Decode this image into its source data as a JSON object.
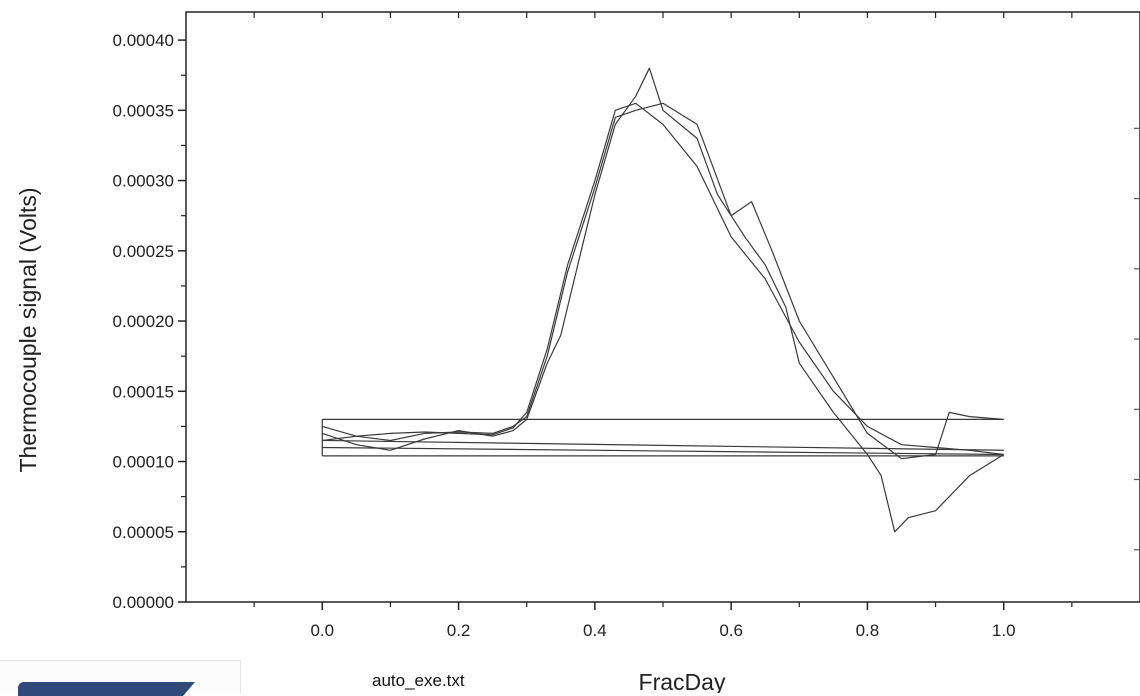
{
  "chart_data": {
    "type": "line",
    "title": "",
    "xlabel": "FracDay",
    "ylabel": "Thermocouple signal (Volts)",
    "xlim": [
      -0.2,
      1.2
    ],
    "ylim": [
      0.0,
      0.00042
    ],
    "x_ticks": [
      "0.0",
      "0.2",
      "0.4",
      "0.6",
      "0.8",
      "1.0"
    ],
    "y_ticks": [
      "0.00000",
      "0.00005",
      "0.00010",
      "0.00015",
      "0.00020",
      "0.00025",
      "0.00030",
      "0.00035",
      "0.00040"
    ],
    "grid": false,
    "line_color": "#3a3a3a",
    "series": [
      {
        "points": [
          [
            0.0,
            0.000115
          ],
          [
            0.05,
            0.000118
          ],
          [
            0.1,
            0.00012
          ],
          [
            0.15,
            0.000121
          ],
          [
            0.2,
            0.00012
          ],
          [
            0.25,
            0.000119
          ],
          [
            0.28,
            0.000124
          ],
          [
            0.3,
            0.000135
          ],
          [
            0.33,
            0.00018
          ],
          [
            0.36,
            0.00024
          ],
          [
            0.4,
            0.0003
          ],
          [
            0.43,
            0.00035
          ],
          [
            0.46,
            0.000355
          ],
          [
            0.5,
            0.00034
          ],
          [
            0.55,
            0.00031
          ],
          [
            0.6,
            0.00026
          ],
          [
            0.65,
            0.00023
          ],
          [
            0.7,
            0.000185
          ],
          [
            0.75,
            0.00015
          ],
          [
            0.8,
            0.000125
          ],
          [
            0.85,
            0.000112
          ],
          [
            0.9,
            0.00011
          ],
          [
            0.95,
            0.000108
          ],
          [
            1.0,
            0.000105
          ]
        ]
      },
      {
        "points": [
          [
            0.0,
            0.00012
          ],
          [
            0.05,
            0.000112
          ],
          [
            0.1,
            0.000108
          ],
          [
            0.15,
            0.000116
          ],
          [
            0.2,
            0.000122
          ],
          [
            0.25,
            0.000118
          ],
          [
            0.28,
            0.000122
          ],
          [
            0.3,
            0.00013
          ],
          [
            0.33,
            0.00017
          ],
          [
            0.35,
            0.00019
          ],
          [
            0.38,
            0.00025
          ],
          [
            0.4,
            0.00029
          ],
          [
            0.43,
            0.00034
          ],
          [
            0.46,
            0.00036
          ],
          [
            0.48,
            0.00038
          ],
          [
            0.5,
            0.00035
          ],
          [
            0.55,
            0.00033
          ],
          [
            0.58,
            0.00029
          ],
          [
            0.62,
            0.00026
          ],
          [
            0.65,
            0.00024
          ],
          [
            0.68,
            0.00021
          ],
          [
            0.7,
            0.00017
          ],
          [
            0.75,
            0.000135
          ],
          [
            0.8,
            0.000105
          ],
          [
            0.82,
            9e-05
          ],
          [
            0.84,
            5e-05
          ],
          [
            0.86,
            6e-05
          ],
          [
            0.9,
            6.5e-05
          ],
          [
            0.95,
            9e-05
          ],
          [
            1.0,
            0.000105
          ]
        ]
      },
      {
        "points": [
          [
            0.0,
            0.000125
          ],
          [
            0.05,
            0.000118
          ],
          [
            0.1,
            0.000115
          ],
          [
            0.15,
            0.00012
          ],
          [
            0.2,
            0.000121
          ],
          [
            0.25,
            0.00012
          ],
          [
            0.28,
            0.000125
          ],
          [
            0.3,
            0.000132
          ],
          [
            0.33,
            0.000175
          ],
          [
            0.36,
            0.000235
          ],
          [
            0.4,
            0.000295
          ],
          [
            0.43,
            0.000345
          ],
          [
            0.46,
            0.00035
          ],
          [
            0.5,
            0.000355
          ],
          [
            0.55,
            0.00034
          ],
          [
            0.6,
            0.000275
          ],
          [
            0.63,
            0.000285
          ],
          [
            0.66,
            0.00025
          ],
          [
            0.7,
            0.0002
          ],
          [
            0.75,
            0.00016
          ],
          [
            0.8,
            0.00012
          ],
          [
            0.85,
            0.000102
          ],
          [
            0.9,
            0.000105
          ],
          [
            0.92,
            0.000135
          ],
          [
            0.95,
            0.000132
          ],
          [
            1.0,
            0.00013
          ]
        ]
      }
    ],
    "baselines": [
      {
        "y_start": 0.00013,
        "y_end": 0.00013
      },
      {
        "y_start": 0.000115,
        "y_end": 0.000108
      },
      {
        "y_start": 0.00011,
        "y_end": 0.000105
      },
      {
        "y_start": 0.000104,
        "y_end": 0.000104
      }
    ]
  },
  "footer": {
    "file_label": "auto_exe.txt"
  }
}
